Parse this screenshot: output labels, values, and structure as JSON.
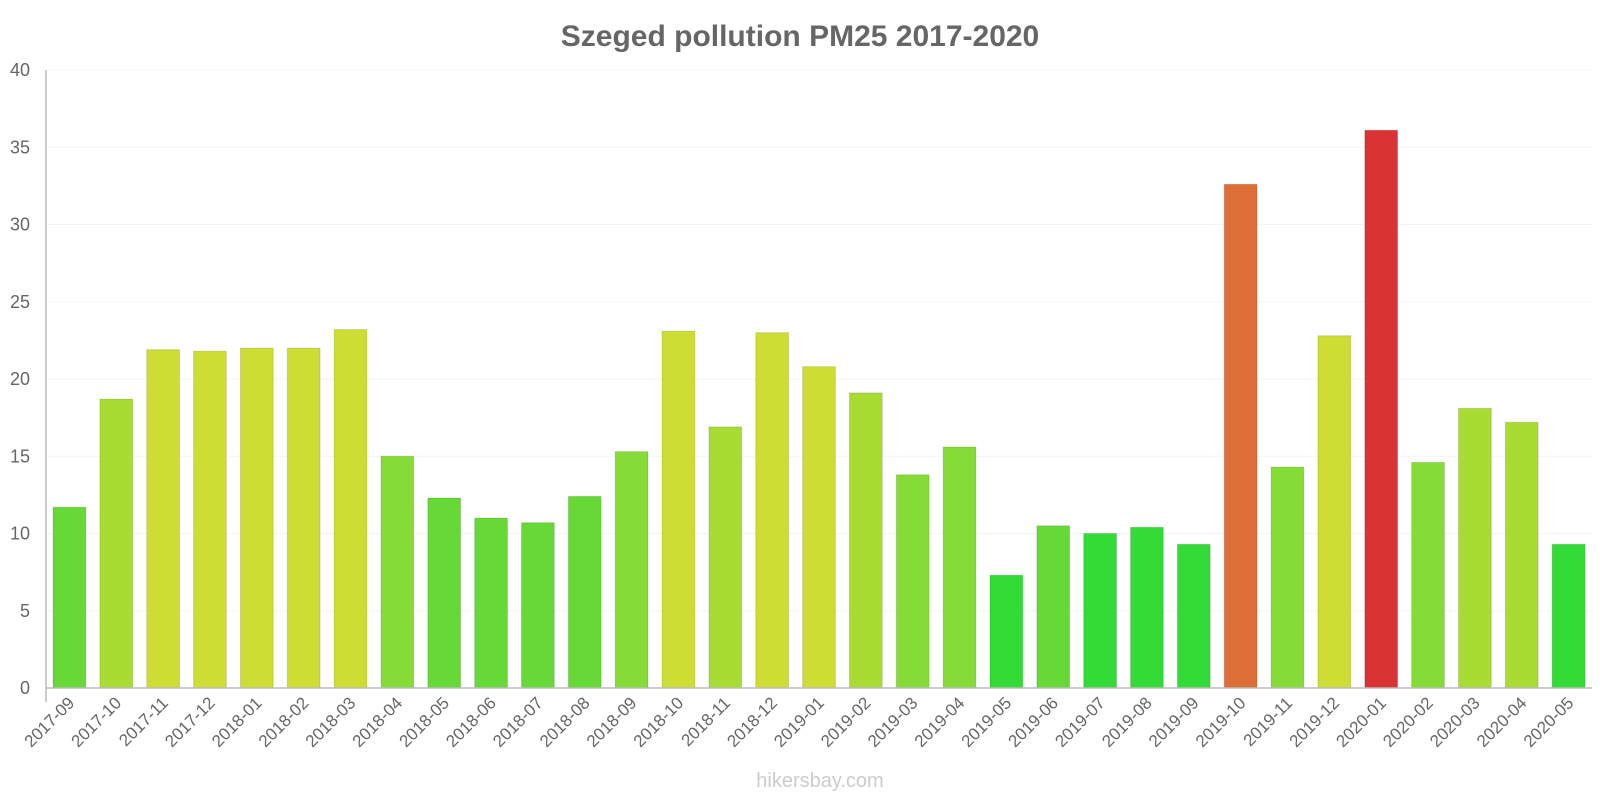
{
  "chart_data": {
    "type": "bar",
    "title": "Szeged pollution PM25 2017-2020",
    "xlabel": "",
    "ylabel": "",
    "ylim": [
      0,
      40
    ],
    "yticks": [
      0,
      5,
      10,
      15,
      20,
      25,
      30,
      35,
      40
    ],
    "grid": true,
    "categories": [
      "2017-09",
      "2017-10",
      "2017-11",
      "2017-12",
      "2018-01",
      "2018-02",
      "2018-03",
      "2018-04",
      "2018-05",
      "2018-06",
      "2018-07",
      "2018-08",
      "2018-09",
      "2018-10",
      "2018-11",
      "2018-12",
      "2019-01",
      "2019-02",
      "2019-03",
      "2019-04",
      "2019-05",
      "2019-06",
      "2019-07",
      "2019-08",
      "2019-09",
      "2019-10",
      "2019-11",
      "2019-12",
      "2020-01",
      "2020-02",
      "2020-03",
      "2020-04",
      "2020-05"
    ],
    "values": [
      11.7,
      18.7,
      21.9,
      21.8,
      22.0,
      22.0,
      23.2,
      15.0,
      12.3,
      11.0,
      10.7,
      12.4,
      15.3,
      23.1,
      16.9,
      23.0,
      20.8,
      19.1,
      13.8,
      15.6,
      7.3,
      10.5,
      10.0,
      10.4,
      9.3,
      32.6,
      14.3,
      22.8,
      36.1,
      14.6,
      18.1,
      17.2,
      9.3
    ],
    "colors": [
      "#66d936",
      "#a8dc33",
      "#cddd33",
      "#cddd33",
      "#cddd33",
      "#cddd33",
      "#cddd33",
      "#86dc36",
      "#66d936",
      "#66d936",
      "#66d936",
      "#66d936",
      "#86dc36",
      "#cddd33",
      "#a8dc33",
      "#cddd33",
      "#cddd33",
      "#a8dc33",
      "#86dc36",
      "#86dc36",
      "#33db36",
      "#66d936",
      "#33db36",
      "#33db36",
      "#33db36",
      "#dd6e36",
      "#86dc36",
      "#cddd33",
      "#da3333",
      "#86dc36",
      "#a8dc33",
      "#a8dc33",
      "#33db36"
    ]
  },
  "credit": "hikersbay.com"
}
